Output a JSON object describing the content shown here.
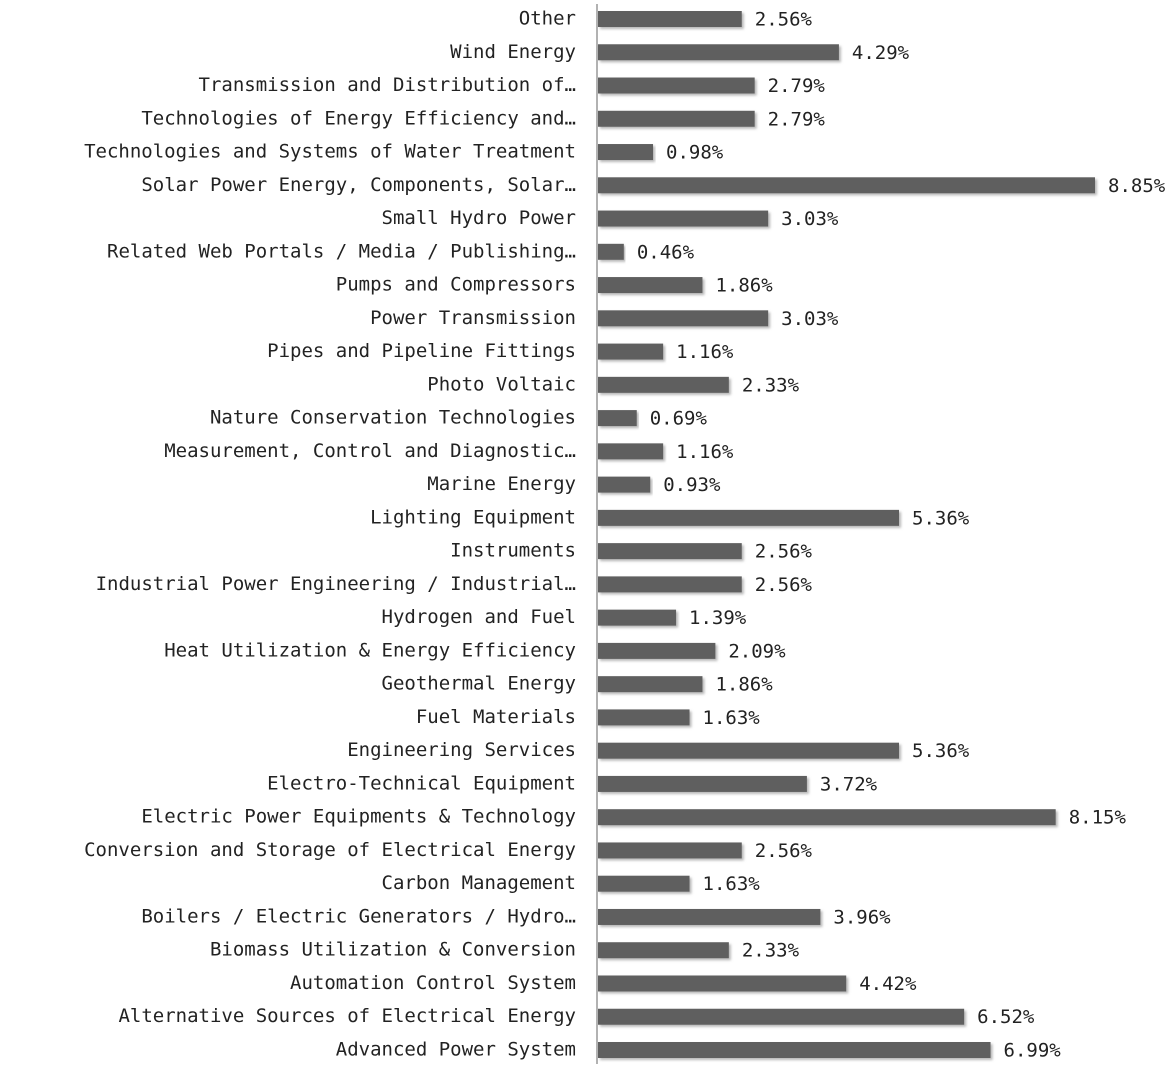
{
  "chart_data": {
    "type": "hbar",
    "categories": [
      "Other",
      "Wind Energy",
      "Transmission and Distribution of…",
      "Technologies of Energy Efficiency and…",
      "Technologies and Systems of Water Treatment",
      "Solar Power Energy, Components, Solar…",
      "Small Hydro Power",
      "Related Web Portals / Media / Publishing…",
      "Pumps and Compressors",
      "Power Transmission",
      "Pipes and Pipeline Fittings",
      "Photo Voltaic",
      "Nature Conservation Technologies",
      "Measurement, Control and Diagnostic…",
      "Marine Energy",
      "Lighting Equipment",
      "Instruments",
      "Industrial Power Engineering / Industrial…",
      "Hydrogen and Fuel",
      "Heat Utilization & Energy Efficiency",
      "Geothermal Energy",
      "Fuel Materials",
      "Engineering Services",
      "Electro-Technical Equipment",
      "Electric Power Equipments & Technology",
      "Conversion and Storage of Electrical Energy",
      "Carbon Management",
      "Boilers / Electric Generators / Hydro…",
      "Biomass Utilization & Conversion",
      "Automation Control System",
      "Alternative Sources of Electrical Energy",
      "Advanced Power System"
    ],
    "values": [
      2.56,
      4.29,
      2.79,
      2.79,
      0.98,
      8.85,
      3.03,
      0.46,
      1.86,
      3.03,
      1.16,
      2.33,
      0.69,
      1.16,
      0.93,
      5.36,
      2.56,
      2.56,
      1.39,
      2.09,
      1.86,
      1.63,
      5.36,
      3.72,
      8.15,
      2.56,
      1.63,
      3.96,
      2.33,
      4.42,
      6.52,
      6.99
    ],
    "value_labels": [
      "2.56%",
      "4.29%",
      "2.79%",
      "2.79%",
      "0.98%",
      "8.85%",
      "3.03%",
      "0.46%",
      "1.86%",
      "3.03%",
      "1.16%",
      "2.33%",
      "0.69%",
      "1.16%",
      "0.93%",
      "5.36%",
      "2.56%",
      "2.56%",
      "1.39%",
      "2.09%",
      "1.86%",
      "1.63%",
      "5.36%",
      "3.72%",
      "8.15%",
      "2.56%",
      "1.63%",
      "3.96%",
      "2.33%",
      "4.42%",
      "6.52%",
      "6.99%"
    ],
    "color": "#5f5f5f"
  }
}
